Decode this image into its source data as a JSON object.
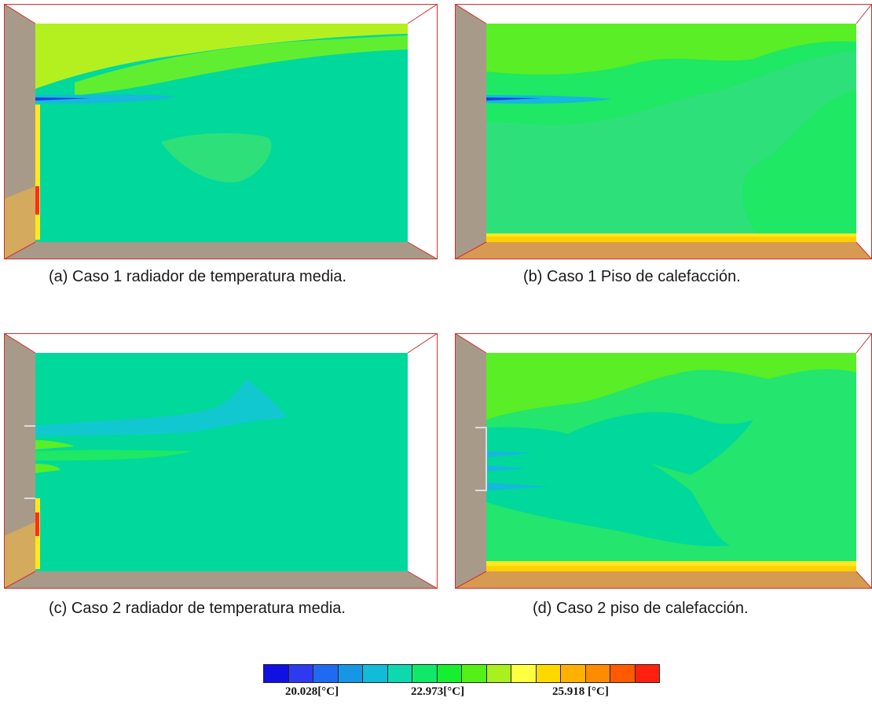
{
  "figure": {
    "panels": [
      {
        "id": "a",
        "caption": "(a) Caso 1 radiador de temperatura media."
      },
      {
        "id": "b",
        "caption": "(b) Caso 1 Piso de calefacción."
      },
      {
        "id": "c",
        "caption": "(c) Caso 2 radiador de temperatura media."
      },
      {
        "id": "d",
        "caption": "(d) Caso 2 piso de calefacción."
      }
    ],
    "colorbar": {
      "colors": [
        "#1010e0",
        "#2e3af0",
        "#1f6af0",
        "#1896e6",
        "#12bcd8",
        "#0ed8ae",
        "#10e86a",
        "#18ee30",
        "#55f018",
        "#a8f020",
        "#ffff40",
        "#ffd800",
        "#ffb000",
        "#ff8c00",
        "#ff5a00",
        "#ff2010"
      ],
      "labels": [
        "20.028[°C]",
        "22.973[°C]",
        "25.918 [°C]"
      ]
    }
  }
}
